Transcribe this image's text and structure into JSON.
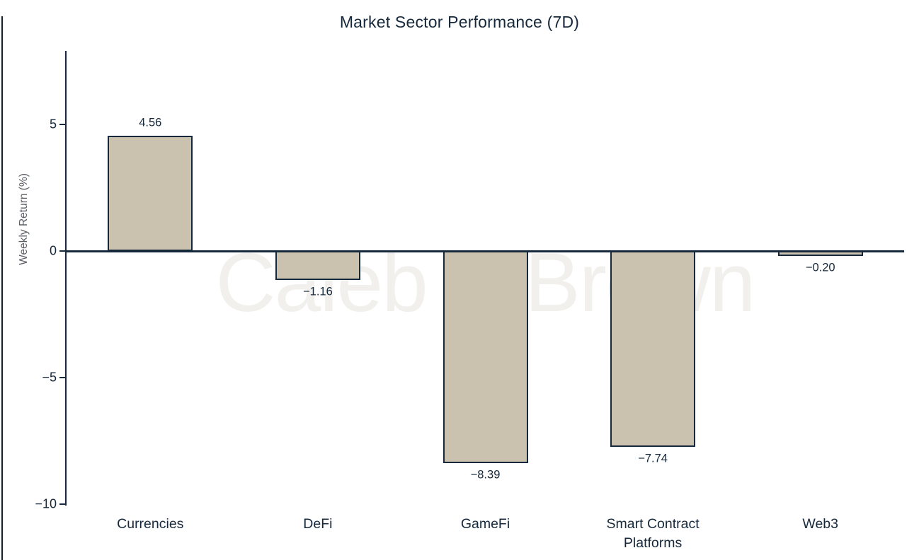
{
  "chart_data": {
    "type": "bar",
    "title": "Market Sector Performance (7D)",
    "ylabel": "Weekly Return (%)",
    "xlabel": "",
    "categories": [
      "Currencies",
      "DeFi",
      "GameFi",
      "Smart Contract Platforms",
      "Web3"
    ],
    "values": [
      4.56,
      -1.16,
      -8.39,
      -7.74,
      -0.2
    ],
    "value_labels": [
      "4.56",
      "−1.16",
      "−8.39",
      "−7.74",
      "−0.20"
    ],
    "yticks": [
      5,
      0,
      -5,
      -10
    ],
    "ytick_labels": [
      "5",
      "0",
      "−5",
      "−10"
    ],
    "ylim": [
      -10,
      7.9
    ],
    "grid": false,
    "legend": null,
    "watermark": "Caleb & Brown",
    "colors": {
      "bar_fill": "#cac2ae",
      "bar_border": "#16293c",
      "axis": "#16293c",
      "title_text": "#16293c",
      "tick_text": "#16293c",
      "ylabel_text": "#5c6066",
      "watermark_text": "#f1f0ed"
    }
  }
}
